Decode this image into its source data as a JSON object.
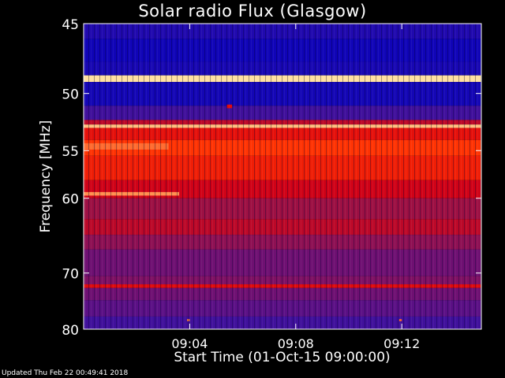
{
  "chart_data": {
    "type": "heatmap",
    "title": "Solar radio Flux (Glasgow)",
    "xlabel": "Start Time (01-Oct-15 09:00:00)",
    "ylabel": "Frequency [MHz]",
    "x_ticks": [
      "09:04",
      "09:08",
      "09:12"
    ],
    "x_tick_values_minutes": [
      4,
      8,
      12
    ],
    "xlim_minutes": [
      0,
      15
    ],
    "y_ticks": [
      "45",
      "50",
      "55",
      "60",
      "70",
      "80"
    ],
    "y_tick_values_mhz": [
      45,
      50,
      55,
      60,
      70,
      80
    ],
    "ylim_mhz": [
      80,
      45
    ],
    "y_scale": "reciprocal",
    "colormap": [
      "#0000c0",
      "#3a10a0",
      "#6a1078",
      "#a01040",
      "#d80010",
      "#ff3000",
      "#ff8040",
      "#ffe0a0"
    ],
    "bands": [
      {
        "f1": 45.0,
        "f2": 46.0,
        "level": 0.08
      },
      {
        "f1": 46.0,
        "f2": 47.6,
        "level": 0.04
      },
      {
        "f1": 47.6,
        "f2": 48.6,
        "level": 0.06
      },
      {
        "f1": 48.6,
        "f2": 49.1,
        "level": 1.0
      },
      {
        "f1": 49.1,
        "f2": 51.0,
        "level": 0.05
      },
      {
        "f1": 51.0,
        "f2": 52.2,
        "level": 0.16
      },
      {
        "f1": 52.2,
        "f2": 52.6,
        "level": 0.5
      },
      {
        "f1": 52.6,
        "f2": 52.9,
        "level": 0.95
      },
      {
        "f1": 52.9,
        "f2": 54.0,
        "level": 0.62
      },
      {
        "f1": 54.0,
        "f2": 55.5,
        "level": 0.72
      },
      {
        "f1": 55.5,
        "f2": 58.0,
        "level": 0.66
      },
      {
        "f1": 58.0,
        "f2": 60.0,
        "level": 0.55
      },
      {
        "f1": 60.0,
        "f2": 62.5,
        "level": 0.42
      },
      {
        "f1": 62.5,
        "f2": 64.5,
        "level": 0.5
      },
      {
        "f1": 64.5,
        "f2": 66.5,
        "level": 0.38
      },
      {
        "f1": 66.5,
        "f2": 70.5,
        "level": 0.3
      },
      {
        "f1": 70.5,
        "f2": 71.8,
        "level": 0.34
      },
      {
        "f1": 71.8,
        "f2": 72.4,
        "level": 0.6
      },
      {
        "f1": 72.4,
        "f2": 74.5,
        "level": 0.3
      },
      {
        "f1": 74.5,
        "f2": 77.5,
        "level": 0.24
      },
      {
        "f1": 77.5,
        "f2": 80.0,
        "level": 0.16
      }
    ],
    "features": [
      {
        "f1": 54.3,
        "f2": 54.9,
        "t1": 0.0,
        "t2": 3.2,
        "level": 0.82
      },
      {
        "f1": 59.3,
        "f2": 59.7,
        "t1": 0.0,
        "t2": 3.6,
        "level": 0.88
      },
      {
        "f1": 50.9,
        "f2": 51.2,
        "t1": 5.4,
        "t2": 5.6,
        "level": 0.6
      },
      {
        "f1": 78.0,
        "f2": 78.4,
        "t1": 3.9,
        "t2": 4.0,
        "level": 0.85
      },
      {
        "f1": 78.0,
        "f2": 78.4,
        "t1": 11.9,
        "t2": 12.0,
        "level": 0.8
      }
    ]
  },
  "footer": "Updated Thu Feb 22 00:49:41 2018"
}
